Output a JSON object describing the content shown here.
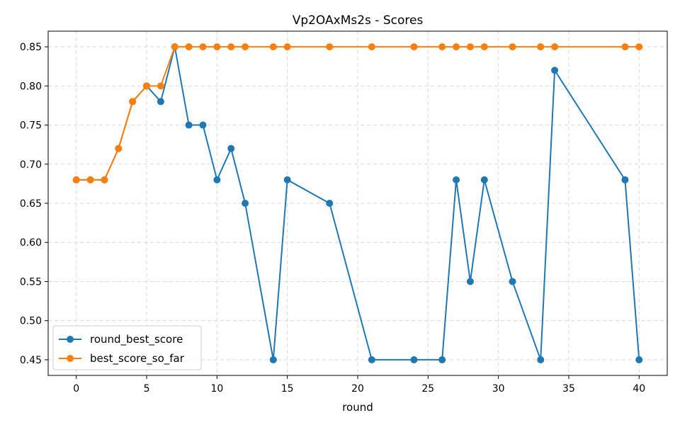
{
  "chart_data": {
    "type": "line",
    "title": "Vp2OAxMs2s - Scores",
    "xlabel": "round",
    "ylabel": "",
    "xlim": [
      -2,
      42
    ],
    "ylim": [
      0.43,
      0.87
    ],
    "xticks": [
      0,
      5,
      10,
      15,
      20,
      25,
      30,
      35,
      40
    ],
    "yticks": [
      0.45,
      0.5,
      0.55,
      0.6,
      0.65,
      0.7,
      0.75,
      0.8,
      0.85
    ],
    "grid": true,
    "legend_position": "lower-left",
    "series": [
      {
        "name": "round_best_score",
        "color": "#1f77b4",
        "x": [
          0,
          1,
          2,
          3,
          4,
          5,
          6,
          7,
          8,
          9,
          10,
          11,
          12,
          14,
          15,
          18,
          21,
          24,
          26,
          27,
          28,
          29,
          31,
          33,
          34,
          39,
          40
        ],
        "y": [
          0.68,
          0.68,
          0.68,
          0.72,
          0.78,
          0.8,
          0.78,
          0.85,
          0.75,
          0.75,
          0.68,
          0.72,
          0.65,
          0.45,
          0.68,
          0.65,
          0.45,
          0.45,
          0.45,
          0.68,
          0.55,
          0.68,
          0.55,
          0.45,
          0.82,
          0.68,
          0.45
        ]
      },
      {
        "name": "best_score_so_far",
        "color": "#ff7f0e",
        "x": [
          0,
          1,
          2,
          3,
          4,
          5,
          6,
          7,
          8,
          9,
          10,
          11,
          12,
          14,
          15,
          18,
          21,
          24,
          26,
          27,
          28,
          29,
          31,
          33,
          34,
          39,
          40
        ],
        "y": [
          0.68,
          0.68,
          0.68,
          0.72,
          0.78,
          0.8,
          0.8,
          0.85,
          0.85,
          0.85,
          0.85,
          0.85,
          0.85,
          0.85,
          0.85,
          0.85,
          0.85,
          0.85,
          0.85,
          0.85,
          0.85,
          0.85,
          0.85,
          0.85,
          0.85,
          0.85,
          0.85
        ]
      }
    ]
  }
}
